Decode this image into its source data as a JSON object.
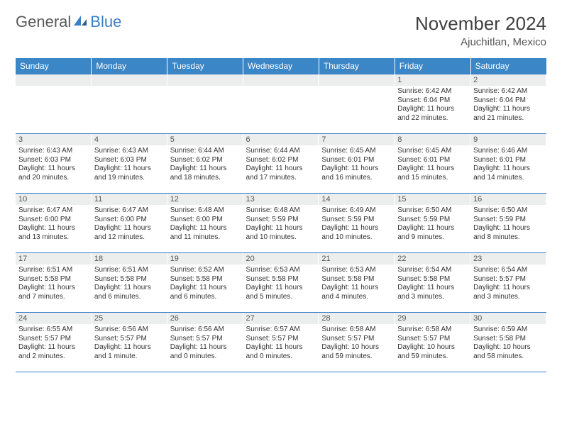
{
  "logo": {
    "text1": "General",
    "text2": "Blue"
  },
  "title": "November 2024",
  "location": "Ajuchitlan, Mexico",
  "colors": {
    "header_bg": "#3b86c7",
    "border": "#3b7fc4",
    "daynum_bg": "#eceded",
    "text": "#333333"
  },
  "weekdays": [
    "Sunday",
    "Monday",
    "Tuesday",
    "Wednesday",
    "Thursday",
    "Friday",
    "Saturday"
  ],
  "weeks": [
    [
      null,
      null,
      null,
      null,
      null,
      {
        "n": "1",
        "sr": "6:42 AM",
        "ss": "6:04 PM",
        "dl": "11 hours and 22 minutes."
      },
      {
        "n": "2",
        "sr": "6:42 AM",
        "ss": "6:04 PM",
        "dl": "11 hours and 21 minutes."
      }
    ],
    [
      {
        "n": "3",
        "sr": "6:43 AM",
        "ss": "6:03 PM",
        "dl": "11 hours and 20 minutes."
      },
      {
        "n": "4",
        "sr": "6:43 AM",
        "ss": "6:03 PM",
        "dl": "11 hours and 19 minutes."
      },
      {
        "n": "5",
        "sr": "6:44 AM",
        "ss": "6:02 PM",
        "dl": "11 hours and 18 minutes."
      },
      {
        "n": "6",
        "sr": "6:44 AM",
        "ss": "6:02 PM",
        "dl": "11 hours and 17 minutes."
      },
      {
        "n": "7",
        "sr": "6:45 AM",
        "ss": "6:01 PM",
        "dl": "11 hours and 16 minutes."
      },
      {
        "n": "8",
        "sr": "6:45 AM",
        "ss": "6:01 PM",
        "dl": "11 hours and 15 minutes."
      },
      {
        "n": "9",
        "sr": "6:46 AM",
        "ss": "6:01 PM",
        "dl": "11 hours and 14 minutes."
      }
    ],
    [
      {
        "n": "10",
        "sr": "6:47 AM",
        "ss": "6:00 PM",
        "dl": "11 hours and 13 minutes."
      },
      {
        "n": "11",
        "sr": "6:47 AM",
        "ss": "6:00 PM",
        "dl": "11 hours and 12 minutes."
      },
      {
        "n": "12",
        "sr": "6:48 AM",
        "ss": "6:00 PM",
        "dl": "11 hours and 11 minutes."
      },
      {
        "n": "13",
        "sr": "6:48 AM",
        "ss": "5:59 PM",
        "dl": "11 hours and 10 minutes."
      },
      {
        "n": "14",
        "sr": "6:49 AM",
        "ss": "5:59 PM",
        "dl": "11 hours and 10 minutes."
      },
      {
        "n": "15",
        "sr": "6:50 AM",
        "ss": "5:59 PM",
        "dl": "11 hours and 9 minutes."
      },
      {
        "n": "16",
        "sr": "6:50 AM",
        "ss": "5:59 PM",
        "dl": "11 hours and 8 minutes."
      }
    ],
    [
      {
        "n": "17",
        "sr": "6:51 AM",
        "ss": "5:58 PM",
        "dl": "11 hours and 7 minutes."
      },
      {
        "n": "18",
        "sr": "6:51 AM",
        "ss": "5:58 PM",
        "dl": "11 hours and 6 minutes."
      },
      {
        "n": "19",
        "sr": "6:52 AM",
        "ss": "5:58 PM",
        "dl": "11 hours and 6 minutes."
      },
      {
        "n": "20",
        "sr": "6:53 AM",
        "ss": "5:58 PM",
        "dl": "11 hours and 5 minutes."
      },
      {
        "n": "21",
        "sr": "6:53 AM",
        "ss": "5:58 PM",
        "dl": "11 hours and 4 minutes."
      },
      {
        "n": "22",
        "sr": "6:54 AM",
        "ss": "5:58 PM",
        "dl": "11 hours and 3 minutes."
      },
      {
        "n": "23",
        "sr": "6:54 AM",
        "ss": "5:57 PM",
        "dl": "11 hours and 3 minutes."
      }
    ],
    [
      {
        "n": "24",
        "sr": "6:55 AM",
        "ss": "5:57 PM",
        "dl": "11 hours and 2 minutes."
      },
      {
        "n": "25",
        "sr": "6:56 AM",
        "ss": "5:57 PM",
        "dl": "11 hours and 1 minute."
      },
      {
        "n": "26",
        "sr": "6:56 AM",
        "ss": "5:57 PM",
        "dl": "11 hours and 0 minutes."
      },
      {
        "n": "27",
        "sr": "6:57 AM",
        "ss": "5:57 PM",
        "dl": "11 hours and 0 minutes."
      },
      {
        "n": "28",
        "sr": "6:58 AM",
        "ss": "5:57 PM",
        "dl": "10 hours and 59 minutes."
      },
      {
        "n": "29",
        "sr": "6:58 AM",
        "ss": "5:57 PM",
        "dl": "10 hours and 59 minutes."
      },
      {
        "n": "30",
        "sr": "6:59 AM",
        "ss": "5:58 PM",
        "dl": "10 hours and 58 minutes."
      }
    ]
  ],
  "labels": {
    "sunrise": "Sunrise:",
    "sunset": "Sunset:",
    "daylight": "Daylight:"
  }
}
